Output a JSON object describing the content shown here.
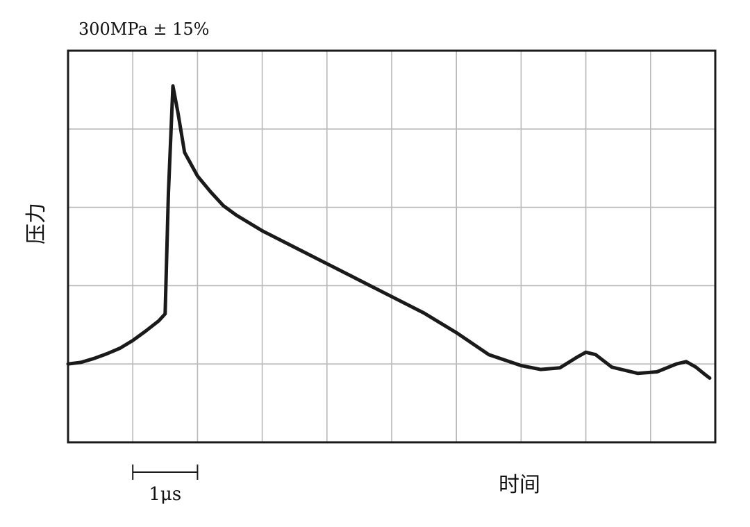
{
  "chart_data": {
    "type": "line",
    "title": "300MPa ± 15%",
    "xlabel": "时间",
    "ylabel": "压力",
    "scale_bar": {
      "label": "1μs",
      "value": 1,
      "unit": "μs"
    },
    "xlim": [
      0,
      10
    ],
    "ylim": [
      0,
      5
    ],
    "grid": true,
    "grid_divisions": {
      "x": 10,
      "y": 5
    },
    "series": [
      {
        "points": [
          [
            0.0,
            1.0
          ],
          [
            0.2,
            1.02
          ],
          [
            0.4,
            1.07
          ],
          [
            0.6,
            1.13
          ],
          [
            0.8,
            1.2
          ],
          [
            1.0,
            1.3
          ],
          [
            1.2,
            1.42
          ],
          [
            1.4,
            1.55
          ],
          [
            1.5,
            1.64
          ],
          [
            1.55,
            3.18
          ],
          [
            1.62,
            4.55
          ],
          [
            1.7,
            4.2
          ],
          [
            1.8,
            3.7
          ],
          [
            2.0,
            3.4
          ],
          [
            2.2,
            3.2
          ],
          [
            2.4,
            3.02
          ],
          [
            2.6,
            2.9
          ],
          [
            3.0,
            2.7
          ],
          [
            3.5,
            2.49
          ],
          [
            4.0,
            2.28
          ],
          [
            4.5,
            2.07
          ],
          [
            5.0,
            1.86
          ],
          [
            5.5,
            1.65
          ],
          [
            6.0,
            1.4
          ],
          [
            6.5,
            1.12
          ],
          [
            7.0,
            0.98
          ],
          [
            7.3,
            0.93
          ],
          [
            7.6,
            0.95
          ],
          [
            7.85,
            1.08
          ],
          [
            8.0,
            1.15
          ],
          [
            8.15,
            1.12
          ],
          [
            8.4,
            0.96
          ],
          [
            8.8,
            0.88
          ],
          [
            9.1,
            0.9
          ],
          [
            9.4,
            1.0
          ],
          [
            9.55,
            1.03
          ],
          [
            9.7,
            0.96
          ],
          [
            9.85,
            0.86
          ],
          [
            10.0,
            0.82
          ],
          [
            10.3,
            0.82
          ]
        ]
      }
    ]
  }
}
